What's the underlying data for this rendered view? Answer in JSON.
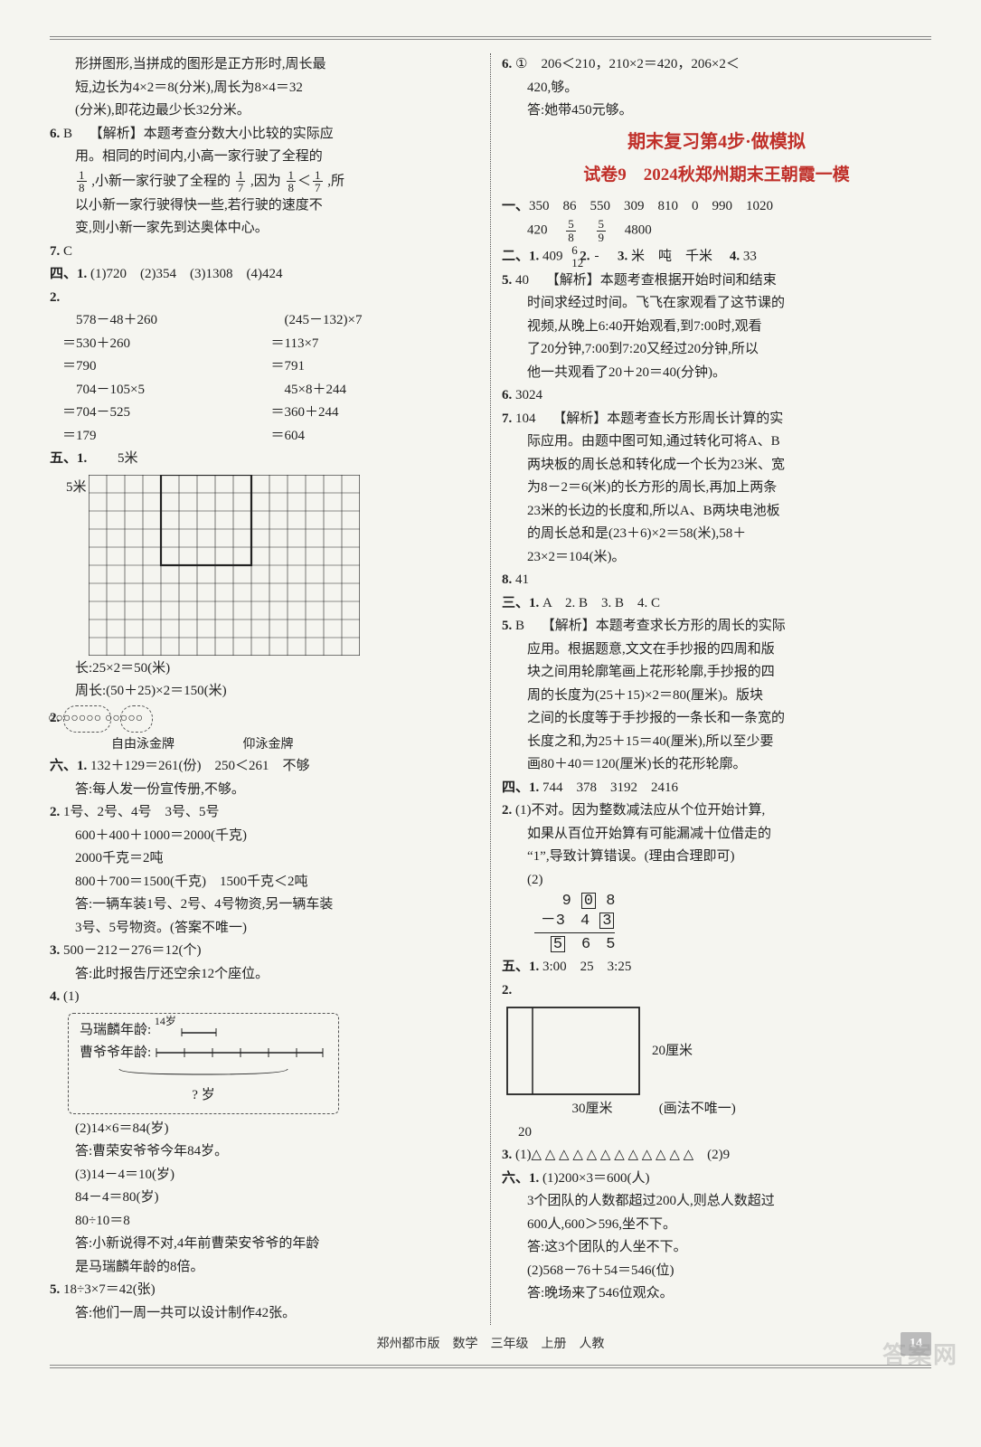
{
  "left": {
    "intro": [
      "形拼图形,当拼成的图形是正方形时,周长最",
      "短,边长为4×2＝8(分米),周长为8×4＝32",
      "(分米),即花边最少长32分米。"
    ],
    "q6": {
      "label": "6.",
      "ans": "B",
      "exp_head": "【解析】本题考查分数大小比较的实际应",
      "exp_lines": [
        "用。相同的时间内,小高一家行驶了全程的",
        "",
        "以小新一家行驶得快一些,若行驶的速度不",
        "变,则小新一家先到达奥体中心。"
      ],
      "frac_line_a": ",小新一家行驶了全程的",
      "frac_line_b": ",因为",
      "frac_line_c": ",所",
      "f1n": "1",
      "f1d": "8",
      "f2n": "1",
      "f2d": "7",
      "f3n": "1",
      "f3d": "8",
      "f4n": "1",
      "f4d": "7"
    },
    "q7": {
      "label": "7.",
      "ans": "C"
    },
    "sec4": {
      "head": "四、1.",
      "row1": "(1)720　(2)354　(3)1308　(4)424",
      "q2": "2.",
      "calc": {
        "l1": "　578－48＋260",
        "r1": "　(245－132)×7",
        "l2": "＝530＋260",
        "r2": "＝113×7",
        "l3": "＝790",
        "r3": "＝791",
        "l4": "　704－105×5",
        "r4": "　45×8＋244",
        "l5": "＝704－525",
        "r5": "＝360＋244",
        "l6": "＝179",
        "r6": "＝604"
      }
    },
    "sec5": {
      "head": "五、1.",
      "top": "5米",
      "left": "5米",
      "len": "长:25×2＝50(米)",
      "peri": "周长:(50＋25)×2＝150(米)",
      "q2": "2.",
      "box1": "○○○○○○○",
      "box2": "○○○○○",
      "lab1": "自由泳金牌",
      "lab2": "仰泳金牌"
    },
    "sec6": {
      "head": "六、1.",
      "l1": "132＋129＝261(份)　250＜261　不够",
      "l1a": "答:每人发一份宣传册,不够。",
      "q2": "2.",
      "l2a": "1号、2号、4号　3号、5号",
      "l2b": "600＋400＋1000＝2000(千克)",
      "l2c": "2000千克＝2吨",
      "l2d": "800＋700＝1500(千克)　1500千克＜2吨",
      "l2e": "答:一辆车装1号、2号、4号物资,另一辆车装",
      "l2f": "3号、5号物资。(答案不唯一)",
      "q3": "3.",
      "l3a": "500－212－276＝12(个)",
      "l3b": "答:此时报告厅还空余12个座位。",
      "q4": "4.",
      "l4a": "(1)",
      "diag_a": "马瑞麟年龄:",
      "diag_a_val": "14岁",
      "diag_b": "曹爷爷年龄:",
      "diag_q": "? 岁",
      "l4b": "(2)14×6＝84(岁)",
      "l4c": "答:曹荣安爷爷今年84岁。",
      "l4d": "(3)14－4＝10(岁)",
      "l4e": "84－4＝80(岁)",
      "l4f": "80÷10＝8",
      "l4g": "答:小新说得不对,4年前曹荣安爷爷的年龄",
      "l4h": "是马瑞麟年龄的8倍。",
      "q5": "5.",
      "l5a": "18÷3×7＝42(张)",
      "l5b": "答:他们一周一共可以设计制作42张。"
    }
  },
  "right": {
    "q6": {
      "label": "6.",
      "l1": "①　206＜210，210×2＝420，206×2＜",
      "l2": "420,够。",
      "l3": "答:她带450元够。"
    },
    "title": "期末复习第4步·做模拟",
    "subtitle": "试卷9　2024秋郑州期末王朝霞一模",
    "sec1": {
      "head": "一、",
      "row1": "350　86　550　309　810　0　990　1020",
      "row2": "420",
      "f1n": "5",
      "f1d": "8",
      "f2n": "5",
      "f2d": "9",
      "row2_tail": "4800"
    },
    "sec2": {
      "head": "二、1.",
      "v1": "409",
      "q2": "2.",
      "f1n": "6",
      "f1d": "12",
      "q3": "3.",
      "v3": "米　吨　千米",
      "q4": "4.",
      "v4": "33",
      "q5": "5.",
      "v5": "40",
      "exp5_h": "【解析】本题考查根据开始时间和结束",
      "exp5": [
        "时间求经过时间。飞飞在家观看了这节课的",
        "视频,从晚上6:40开始观看,到7:00时,观看",
        "了20分钟,7:00到7:20又经过20分钟,所以",
        "他一共观看了20＋20＝40(分钟)。"
      ],
      "q6": "6.",
      "v6": "3024",
      "q7": "7.",
      "v7": "104",
      "exp7_h": "【解析】本题考查长方形周长计算的实",
      "exp7": [
        "际应用。由题中图可知,通过转化可将A、B",
        "两块板的周长总和转化成一个长为23米、宽",
        "为8－2＝6(米)的长方形的周长,再加上两条",
        "23米的长边的长度和,所以A、B两块电池板",
        "的周长总和是(23＋6)×2＝58(米),58＋",
        "23×2＝104(米)。"
      ],
      "q8": "8.",
      "v8": "41"
    },
    "sec3": {
      "head": "三、1.",
      "row1": "A　2. B　3. B　4. C",
      "q5": "5.",
      "v5": "B",
      "exp5_h": "【解析】本题考查求长方形的周长的实际",
      "exp5": [
        "应用。根据题意,文文在手抄报的四周和版",
        "块之间用轮廓笔画上花形轮廓,手抄报的四",
        "周的长度为(25＋15)×2＝80(厘米)。版块",
        "之间的长度等于手抄报的一条长和一条宽的",
        "长度之和,为25＋15＝40(厘米),所以至少要",
        "画80＋40＝120(厘米)长的花形轮廓。"
      ]
    },
    "sec4": {
      "head": "四、1.",
      "row1": "744　378　3192　2416",
      "q2": "2.",
      "l2a": "(1)不对。因为整数减法应从个位开始计算,",
      "l2b": "如果从百位开始算有可能漏减十位借走的",
      "l2c": "“1”,导致计算错误。(理由合理即可)",
      "l2d": "(2)",
      "vs_top_a": "9",
      "vs_top_b": "0",
      "vs_top_c": "8",
      "vs_mid_a": "3",
      "vs_mid_b": "4",
      "vs_mid_c": "3",
      "vs_bot_a": "5",
      "vs_bot_b": "6",
      "vs_bot_c": "5"
    },
    "sec5": {
      "head": "五、1.",
      "v1": "3:00　25　3:25",
      "q2": "2.",
      "rect_h": "20厘米",
      "rect_w": "30厘米",
      "rect_note": "(画法不唯一)",
      "rect_bottom": "20",
      "q3": "3.",
      "l3a": "(1)△ △ △ △ △ △ △ △ △ △ △ △　(2)9"
    },
    "sec6": {
      "head": "六、1.",
      "l1a": "(1)200×3＝600(人)",
      "l1b": "3个团队的人数都超过200人,则总人数超过",
      "l1c": "600人,600＞596,坐不下。",
      "l1d": "答:这3个团队的人坐不下。",
      "l2a": "(2)568－76＋54＝546(位)",
      "l2b": "答:晚场来了546位观众。"
    }
  },
  "footer": {
    "text": "郑州都市版　数学　三年级　上册　人教",
    "page": "14",
    "wm": "答案网"
  }
}
